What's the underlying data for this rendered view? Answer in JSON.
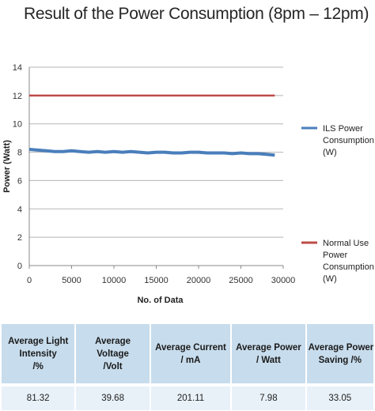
{
  "title": "Result of the Power Consumption (8pm – 12pm)",
  "chart_data": {
    "type": "line",
    "title": "Result of the Power Consumption (8pm – 12pm)",
    "xlabel": "No. of Data",
    "ylabel": "Power (Watt)",
    "xlim": [
      0,
      30000
    ],
    "ylim": [
      0,
      14
    ],
    "x_ticks": [
      "0",
      "5000",
      "10000",
      "15000",
      "20000",
      "25000",
      "30000"
    ],
    "y_ticks": [
      "0",
      "2",
      "4",
      "6",
      "8",
      "10",
      "12",
      "14"
    ],
    "grid": true,
    "legend_position": "right",
    "series": [
      {
        "name": "ILS Power Consumption (W)",
        "legend_lines": [
          "ILS Power",
          "Consumption",
          "(W)"
        ],
        "color": "#4a7ebb",
        "x": [
          0,
          1000,
          2000,
          3000,
          4000,
          5000,
          6000,
          7000,
          8000,
          9000,
          10000,
          11000,
          12000,
          13000,
          14000,
          15000,
          16000,
          17000,
          18000,
          19000,
          20000,
          21000,
          22000,
          23000,
          24000,
          25000,
          26000,
          27000,
          28000,
          29000
        ],
        "values": [
          8.2,
          8.15,
          8.1,
          8.05,
          8.05,
          8.1,
          8.05,
          8.0,
          8.05,
          8.0,
          8.05,
          8.0,
          8.05,
          8.0,
          7.95,
          8.0,
          8.0,
          7.95,
          7.95,
          8.0,
          8.0,
          7.95,
          7.95,
          7.95,
          7.9,
          7.95,
          7.9,
          7.9,
          7.85,
          7.8
        ]
      },
      {
        "name": "Normal Use Power Consumption (W)",
        "legend_lines": [
          "Normal Use",
          "Power",
          "Consumption",
          "(W)"
        ],
        "color": "#be4b48",
        "x": [
          0,
          29000
        ],
        "values": [
          12,
          12
        ]
      }
    ]
  },
  "table": {
    "headers": [
      [
        "Average Light",
        "Intensity",
        "/%"
      ],
      [
        "Average",
        "Voltage",
        "/Volt"
      ],
      [
        "Average Current",
        "/ mA"
      ],
      [
        "Average Power",
        "/ Watt"
      ],
      [
        "Average Power",
        "Saving /%"
      ]
    ],
    "values": [
      "81.32",
      "39.68",
      "201.11",
      "7.98",
      "33.05"
    ]
  }
}
